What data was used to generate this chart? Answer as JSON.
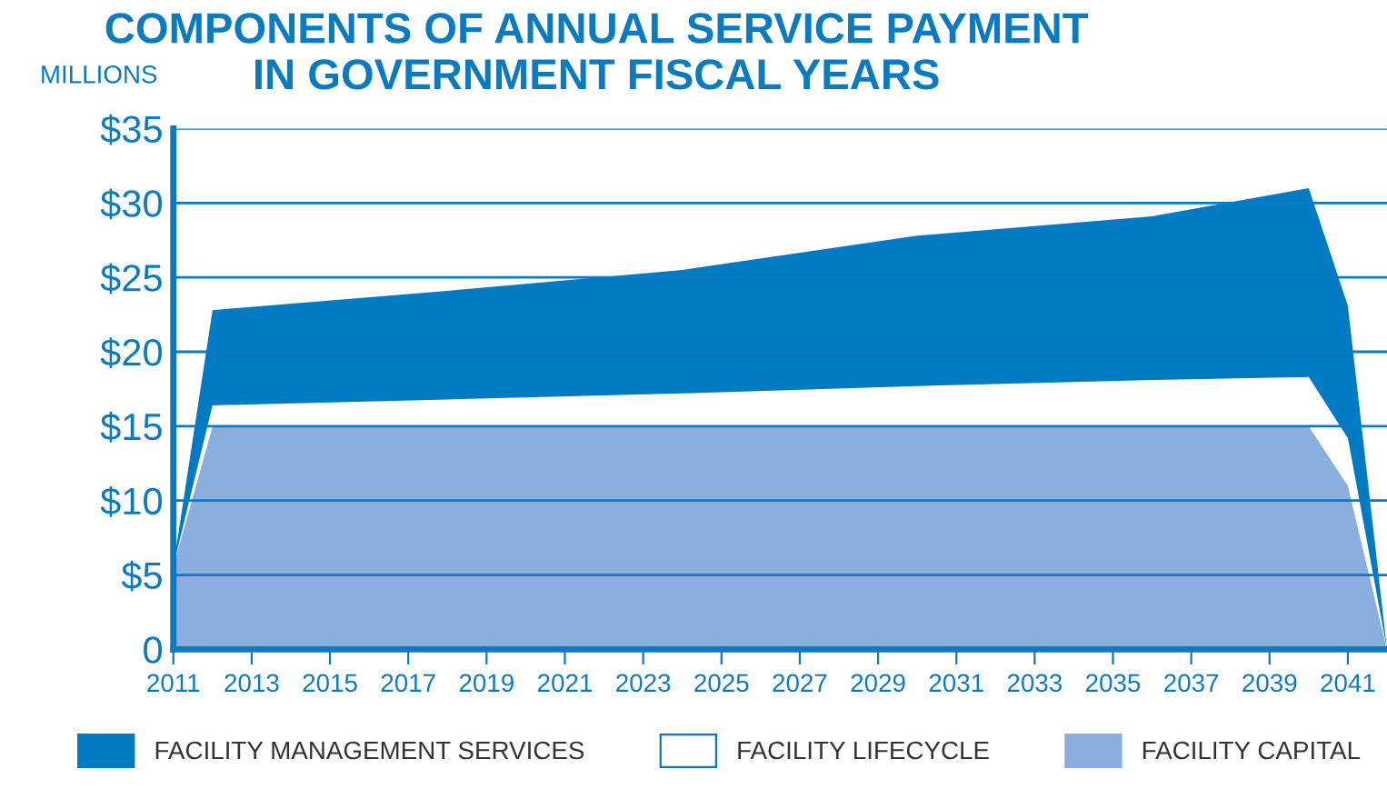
{
  "chart_data": {
    "type": "area",
    "stacked": true,
    "title": "COMPONENTS OF ANNUAL SERVICE PAYMENT\nIN GOVERNMENT FISCAL YEARS",
    "ylabel": "MILLIONS",
    "x": [
      2011,
      2012,
      2018,
      2024,
      2030,
      2036,
      2040,
      2041,
      2042
    ],
    "series": [
      {
        "name": "FACILITY CAPITAL",
        "color": "#8aaede",
        "values": [
          5.6,
          15,
          15,
          15,
          15,
          15,
          15,
          11.0,
          0
        ]
      },
      {
        "name": "FACILITY LIFECYCLE",
        "color": "#ffffff",
        "values": [
          0,
          1.4,
          1.8,
          2.2,
          2.7,
          3.1,
          3.3,
          3.2,
          0
        ]
      },
      {
        "name": "FACILITY MANAGEMENT SERVICES",
        "color": "#007ac2",
        "values": [
          0,
          6.4,
          7.3,
          8.3,
          10.1,
          11.0,
          12.7,
          8.9,
          0
        ]
      }
    ],
    "xlim": [
      2011,
      2042
    ],
    "xticks": [
      2011,
      2013,
      2015,
      2017,
      2019,
      2021,
      2023,
      2025,
      2027,
      2029,
      2031,
      2033,
      2035,
      2037,
      2039,
      2041
    ],
    "ylim": [
      0,
      35
    ],
    "yticks": [
      {
        "value": 0,
        "label": "0"
      },
      {
        "value": 5,
        "label": "$5"
      },
      {
        "value": 10,
        "label": "$10"
      },
      {
        "value": 15,
        "label": "$15"
      },
      {
        "value": 20,
        "label": "$20"
      },
      {
        "value": 25,
        "label": "$25"
      },
      {
        "value": 30,
        "label": "$30"
      },
      {
        "value": 35,
        "label": "$35"
      }
    ],
    "grid": "y",
    "legend": "bottom"
  }
}
